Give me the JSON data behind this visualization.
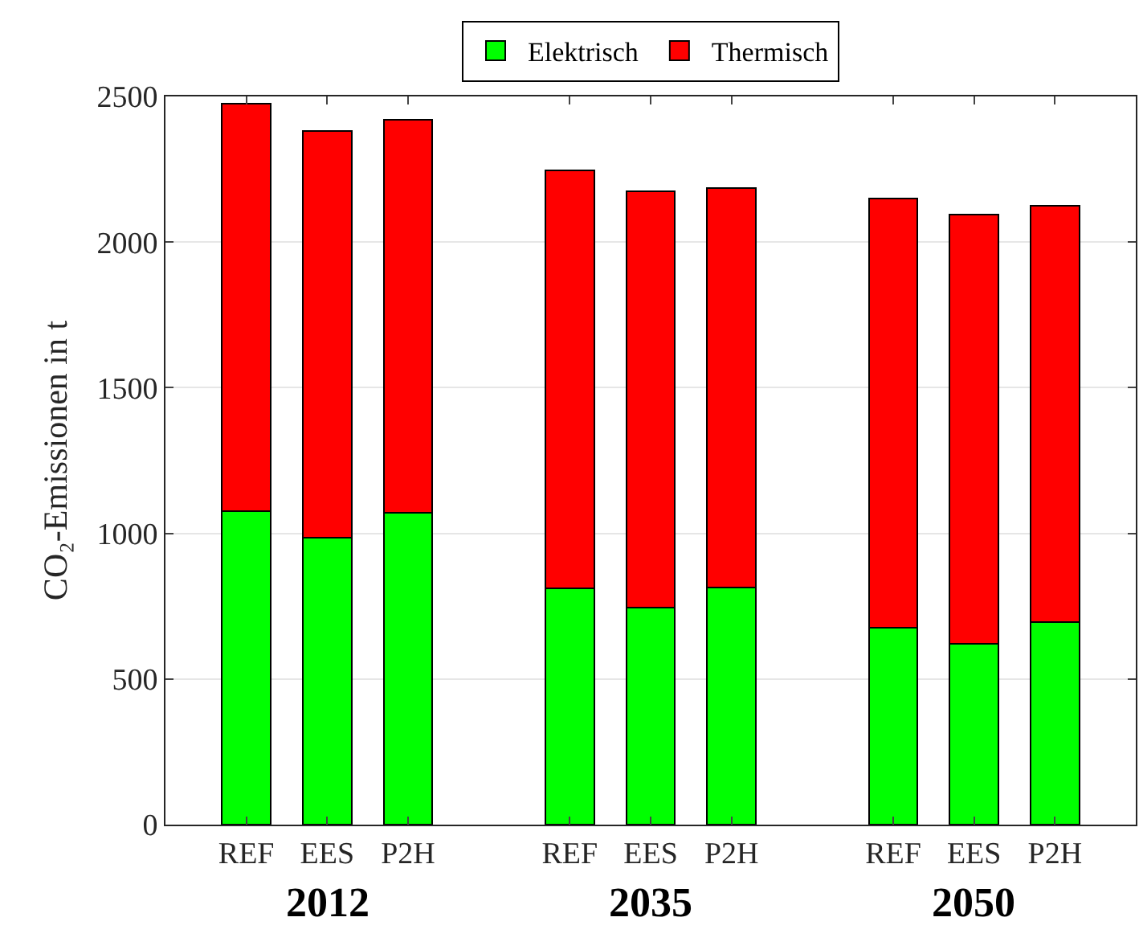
{
  "chart_data": {
    "type": "bar",
    "stacked": true,
    "ylabel": "CO₂-Emissionen in t",
    "categories": [
      "REF",
      "EES",
      "P2H",
      null,
      "REF",
      "EES",
      "P2H",
      null,
      "REF",
      "EES",
      "P2H"
    ],
    "series": [
      {
        "name": "Elektrisch",
        "color": "#00ff00",
        "values": [
          1075,
          985,
          1070,
          null,
          810,
          745,
          815,
          null,
          675,
          620,
          695
        ]
      },
      {
        "name": "Thermisch",
        "color": "#ff0000",
        "values": [
          1400,
          1395,
          1350,
          null,
          1435,
          1430,
          1370,
          null,
          1475,
          1475,
          1430
        ]
      }
    ],
    "annotations": [
      "2012",
      "2035",
      "2050"
    ],
    "ylim": [
      0,
      2500
    ],
    "yticks": [
      0,
      500,
      1000,
      1500,
      2000,
      2500
    ],
    "grid": "y",
    "legend": "top"
  }
}
